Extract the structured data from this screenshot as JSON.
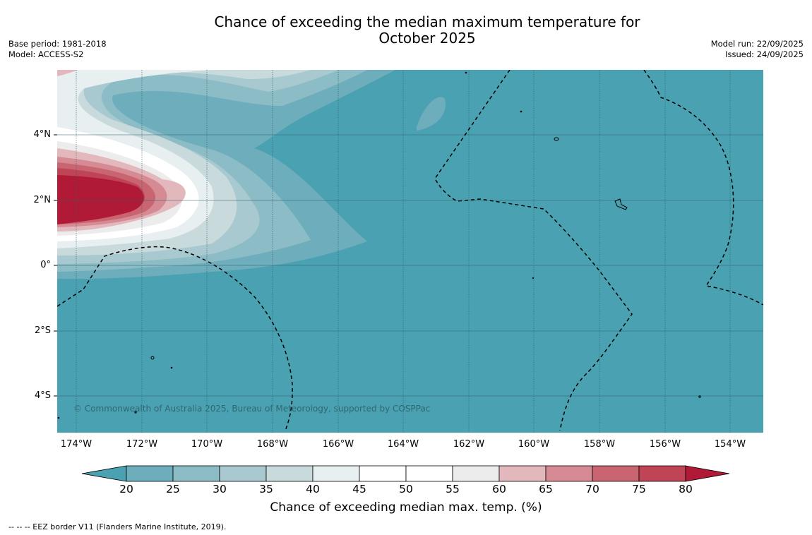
{
  "title_line1": "Chance of exceeding the median maximum temperature for",
  "title_line2": "October 2025",
  "meta_left": {
    "base_period": "Base period: 1981-2018",
    "model": "Model: ACCESS-S2"
  },
  "meta_right": {
    "model_run": "Model run: 22/09/2025",
    "issued": "Issued: 24/09/2025"
  },
  "map": {
    "lat_labels": [
      "4°N",
      "2°N",
      "0°",
      "2°S",
      "4°S"
    ],
    "lon_labels": [
      "174°W",
      "172°W",
      "170°W",
      "168°W",
      "166°W",
      "164°W",
      "162°W",
      "160°W",
      "158°W",
      "156°W",
      "154°W"
    ],
    "copyright": "© Commonwealth of Australia 2025, Bureau of Meteorology, supported by COSPPac",
    "ocean_color": "#4aa1b2"
  },
  "colorbar": {
    "ticks": [
      "20",
      "25",
      "30",
      "35",
      "40",
      "45",
      "50",
      "55",
      "60",
      "65",
      "70",
      "75",
      "80"
    ],
    "colors": [
      "#4aa1b2",
      "#6eaebc",
      "#8cbcc6",
      "#a8c9cf",
      "#c9dadd",
      "#e8eff1",
      "#ffffff",
      "#ffffff",
      "#ececec",
      "#e3b8bd",
      "#d68a93",
      "#c96571",
      "#bf4456",
      "#b11a36"
    ],
    "label": "Chance of exceeding median max. temp. (%)"
  },
  "footer": "--  --  -- EEZ border V11 (Flanders Marine Institute, 2019)."
}
